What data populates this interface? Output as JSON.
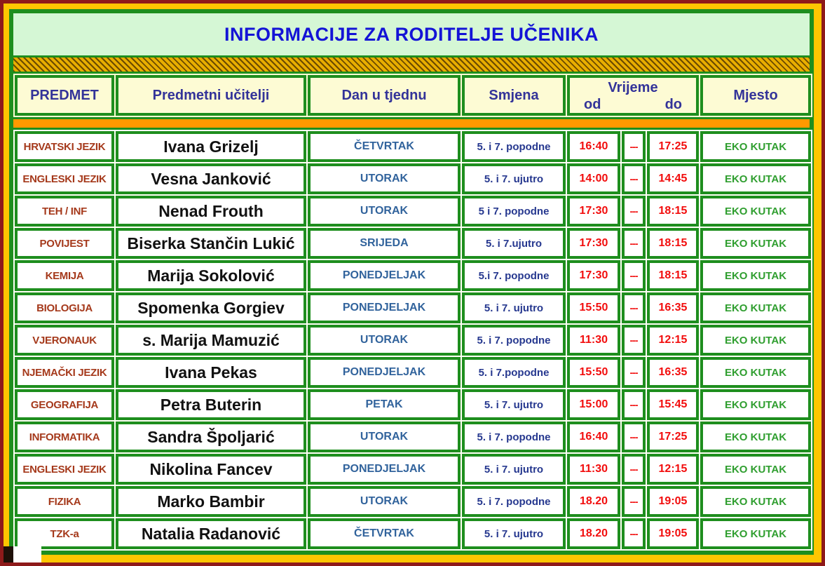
{
  "title": "INFORMACIJE ZA RODITELJE UČENIKA",
  "table": {
    "headers": {
      "predmet": "PREDMET",
      "ucitelji": "Predmetni učitelji",
      "dan": "Dan u tjednu",
      "smjena": "Smjena",
      "vrijeme": "Vrijeme",
      "od": "od",
      "do": "do",
      "mjesto": "Mjesto"
    },
    "rows": [
      {
        "predmet": "HRVATSKI JEZIK",
        "ucitelj": "Ivana Grizelj",
        "dan": "ČETVRTAK",
        "smjena": "5. i 7. popodne",
        "od": "16:40",
        "dash": "---",
        "do": "17:25",
        "mjesto": "EKO KUTAK"
      },
      {
        "predmet": "ENGLESKI JEZIK",
        "ucitelj": "Vesna Janković",
        "dan": "UTORAK",
        "smjena": "5. i 7. ujutro",
        "od": "14:00",
        "dash": "---",
        "do": "14:45",
        "mjesto": "EKO KUTAK"
      },
      {
        "predmet": "TEH / INF",
        "ucitelj": "Nenad Frouth",
        "dan": "UTORAK",
        "smjena": "5 i 7. popodne",
        "od": "17:30",
        "dash": "---",
        "do": "18:15",
        "mjesto": "EKO KUTAK"
      },
      {
        "predmet": "POVIJEST",
        "ucitelj": "Biserka Stančin Lukić",
        "dan": "SRIJEDA",
        "smjena": "5. i 7.ujutro",
        "od": "17:30",
        "dash": "---",
        "do": "18:15",
        "mjesto": "EKO KUTAK"
      },
      {
        "predmet": "KEMIJA",
        "ucitelj": "Marija Sokolović",
        "dan": "PONEDJELJAK",
        "smjena": "5.i 7. popodne",
        "od": "17:30",
        "dash": "---",
        "do": "18:15",
        "mjesto": "EKO KUTAK"
      },
      {
        "predmet": "BIOLOGIJA",
        "ucitelj": "Spomenka Gorgiev",
        "dan": "PONEDJELJAK",
        "smjena": "5. i 7. ujutro",
        "od": "15:50",
        "dash": "---",
        "do": "16:35",
        "mjesto": "EKO KUTAK"
      },
      {
        "predmet": "VJERONAUK",
        "ucitelj": "s. Marija Mamuzić",
        "dan": "UTORAK",
        "smjena": "5. i 7. popodne",
        "od": "11:30",
        "dash": "---",
        "do": "12:15",
        "mjesto": "EKO KUTAK"
      },
      {
        "predmet": "NJEMAČKI JEZIK",
        "ucitelj": "Ivana Pekas",
        "dan": "PONEDJELJAK",
        "smjena": "5. i 7.popodne",
        "od": "15:50",
        "dash": "---",
        "do": "16:35",
        "mjesto": "EKO KUTAK"
      },
      {
        "predmet": "GEOGRAFIJA",
        "ucitelj": "Petra Buterin",
        "dan": "PETAK",
        "smjena": "5. i 7. ujutro",
        "od": "15:00",
        "dash": "---",
        "do": "15:45",
        "mjesto": "EKO KUTAK"
      },
      {
        "predmet": "INFORMATIKA",
        "ucitelj": "Sandra Špoljarić",
        "dan": "UTORAK",
        "smjena": "5. i 7. popodne",
        "od": "16:40",
        "dash": "---",
        "do": "17:25",
        "mjesto": "EKO KUTAK"
      },
      {
        "predmet": "ENGLESKI JEZIK",
        "ucitelj": "Nikolina Fancev",
        "dan": "PONEDJELJAK",
        "smjena": "5. i 7. ujutro",
        "od": "11:30",
        "dash": "---",
        "do": "12:15",
        "mjesto": "EKO KUTAK"
      },
      {
        "predmet": "FIZIKA",
        "ucitelj": "Marko Bambir",
        "dan": "UTORAK",
        "smjena": "5. i 7. popodne",
        "od": "18.20",
        "dash": "---",
        "do": "19:05",
        "mjesto": "EKO KUTAK"
      },
      {
        "predmet": "TZK-a",
        "ucitelj": "Natalia Radanović",
        "dan": "ČETVRTAK",
        "smjena": "5. i 7. ujutro",
        "od": "18.20",
        "dash": "---",
        "do": "19:05",
        "mjesto": "EKO KUTAK"
      }
    ]
  },
  "colors": {
    "page_background": "#FEC601",
    "outer_border": "#8E1A1A",
    "table_border_green": "#1E8E1E",
    "title_background": "#D5F7D5",
    "title_text": "#1414D6",
    "header_background": "#FDFBD4",
    "header_text": "#333399",
    "divider_orange": "#FF9900",
    "cell_background": "#FFFFFF",
    "subject_text": "#A5391B",
    "teacher_text": "#111111",
    "day_text": "#31639C",
    "shift_text": "#26388F",
    "time_text": "#F20D0D",
    "place_text": "#2F9E2F"
  }
}
